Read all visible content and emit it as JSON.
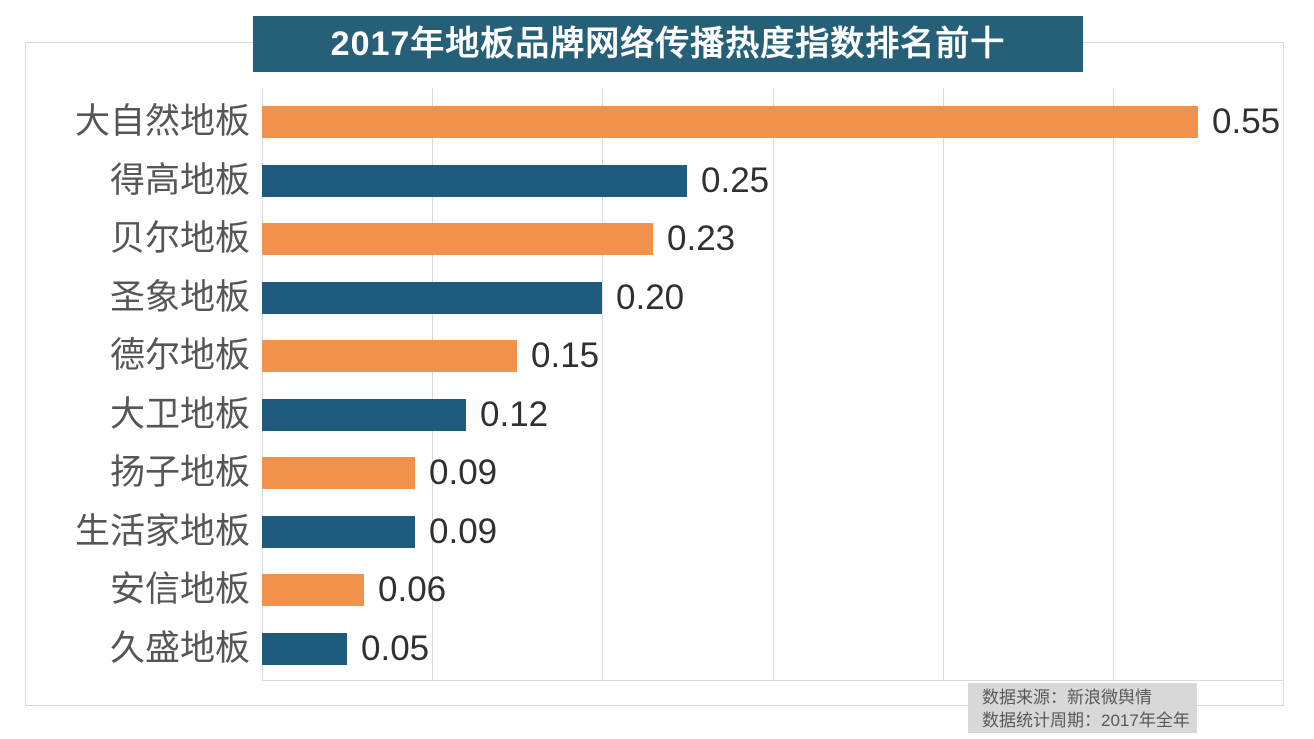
{
  "title": "2017年地板品牌网络传播热度指数排名前十",
  "colors": {
    "banner_bg": "#266078",
    "bar_orange": "#F0914C",
    "bar_blue": "#1E5B7C",
    "grid": "#D9D9D9",
    "category_label": "#565656",
    "value_label": "#303030",
    "footer_bg": "#D8D8D8",
    "footer_text": "#595959"
  },
  "footer": {
    "source_line": "数据来源：新浪微舆情",
    "period_line": "数据统计周期：2017年全年"
  },
  "chart_data": {
    "type": "bar",
    "orientation": "horizontal",
    "title": "2017年地板品牌网络传播热度指数排名前十",
    "categories": [
      "大自然地板",
      "得高地板",
      "贝尔地板",
      "圣象地板",
      "德尔地板",
      "大卫地板",
      "扬子地板",
      "生活家地板",
      "安信地板",
      "久盛地板"
    ],
    "values": [
      0.55,
      0.25,
      0.23,
      0.2,
      0.15,
      0.12,
      0.09,
      0.09,
      0.06,
      0.05
    ],
    "value_labels": [
      "0.55",
      "0.25",
      "0.23",
      "0.20",
      "0.15",
      "0.12",
      "0.09",
      "0.09",
      "0.06",
      "0.05"
    ],
    "bar_color_pattern": [
      "#F0914C",
      "#1E5B7C"
    ],
    "xlim": [
      0,
      0.6
    ],
    "gridline_step": 0.1,
    "grid": true,
    "legend": false,
    "xlabel": "",
    "ylabel": ""
  }
}
